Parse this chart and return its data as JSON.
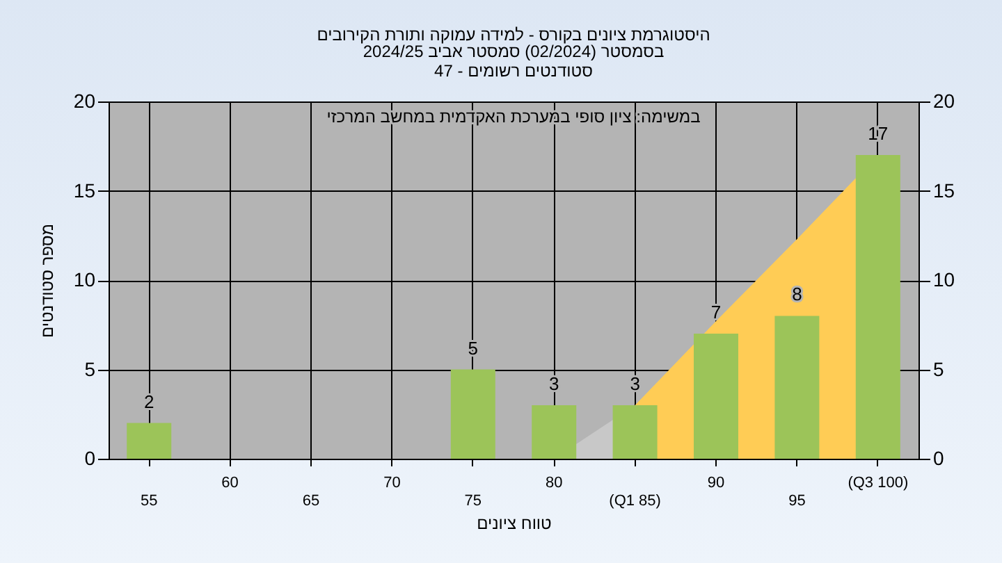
{
  "chart_data": {
    "type": "bar",
    "title": "היסטוגרמת ציונים בקורס - למידה עמוקה ותורת הקירובים",
    "subtitle": "בסמסטר  (02/2024)  סמסטר אביב 2024/25\nסטודנטים רשומים - 47",
    "xlabel": "טווח ציונים",
    "ylabel": "מספר סטודנטים",
    "annotations": [
      "במשימה: ציון סופי במערכת האקדמית במחשב המרכזי"
    ],
    "categories": [
      "55",
      "60",
      "65",
      "70",
      "75",
      "80",
      "(Q1 85)",
      "90",
      "95",
      "(Q3 100)"
    ],
    "series": [
      {
        "type": "area",
        "color": "#c8c8c8",
        "values": [
          null,
          null,
          null,
          null,
          null,
          0,
          3,
          null,
          null,
          null
        ]
      },
      {
        "type": "area",
        "color": "#ffcc55",
        "values": [
          null,
          null,
          null,
          null,
          null,
          null,
          3,
          7.7,
          12.3,
          17
        ]
      },
      {
        "color": "#9cc459",
        "values": [
          2,
          0,
          0,
          0,
          5,
          3,
          3,
          7,
          8,
          17
        ],
        "value_labels": [
          "2",
          null,
          null,
          null,
          "5",
          "3",
          "3",
          "7",
          "8",
          "17"
        ]
      }
    ],
    "ylim": [
      0,
      20
    ],
    "yticks": [
      0,
      5,
      10,
      15,
      20
    ],
    "y2lim": [
      0,
      20
    ],
    "y2ticks": [
      0,
      5,
      10,
      15,
      20
    ],
    "grid": true
  }
}
